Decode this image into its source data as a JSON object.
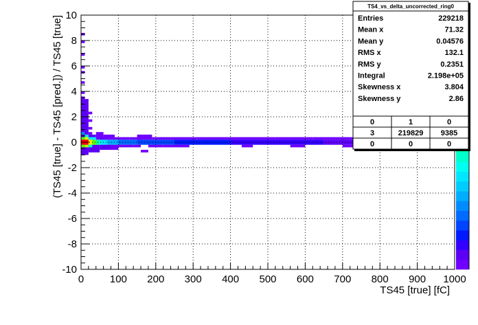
{
  "chart_data": {
    "type": "heatmap",
    "title": "",
    "xlabel": "TS45 [true] [fC]",
    "ylabel": "(TS45 [true] - TS45 [pred.]) / TS45 [true]",
    "xlim": [
      0,
      1000
    ],
    "ylim": [
      -10,
      10
    ],
    "x_ticks": [
      "0",
      "100",
      "200",
      "300",
      "400",
      "500",
      "600",
      "700",
      "800",
      "900",
      "1000"
    ],
    "y_ticks": [
      "-10",
      "-8",
      "-6",
      "-4",
      "-2",
      "0",
      "2",
      "4",
      "6",
      "8",
      "10"
    ],
    "grid": true,
    "z_scale": "log",
    "palette": [
      "#6f00ff",
      "#5c00f5",
      "#3300ff",
      "#0019ff",
      "#0044ff",
      "#006bff",
      "#008cff",
      "#00adff",
      "#00ccff",
      "#00e6ff",
      "#00fff0",
      "#00ffcc",
      "#00ff99",
      "#00ff66",
      "#00ff33",
      "#1aff00",
      "#55ff00",
      "#88ff00",
      "#b8ff00",
      "#e5ff00",
      "#fff000",
      "#ffc800",
      "#ff9900",
      "#ff6600",
      "#ff3300",
      "#ff0000"
    ],
    "cells": [
      {
        "x0": 0,
        "x1": 10,
        "y0": 8.4,
        "y1": 8.6,
        "level": 0
      },
      {
        "x0": 0,
        "x1": 10,
        "y0": 7.8,
        "y1": 8.0,
        "level": 0
      },
      {
        "x0": 0,
        "x1": 10,
        "y0": 6.8,
        "y1": 7.0,
        "level": 0
      },
      {
        "x0": 0,
        "x1": 10,
        "y0": 5.8,
        "y1": 6.0,
        "level": 0
      },
      {
        "x0": 0,
        "x1": 10,
        "y0": 5.4,
        "y1": 5.6,
        "level": 0
      },
      {
        "x0": 0,
        "x1": 10,
        "y0": 4.6,
        "y1": 4.8,
        "level": 0
      },
      {
        "x0": 0,
        "x1": 10,
        "y0": 3.8,
        "y1": 4.0,
        "level": 0
      },
      {
        "x0": 0,
        "x1": 10,
        "y0": 3.4,
        "y1": 3.6,
        "level": 0
      },
      {
        "x0": 0,
        "x1": 20,
        "y0": 0.2,
        "y1": 3.4,
        "level": 1
      },
      {
        "x0": 0,
        "x1": 20,
        "y0": -1.0,
        "y1": -0.2,
        "level": 1
      },
      {
        "x0": 20,
        "x1": 30,
        "y0": 2.2,
        "y1": 2.4,
        "level": 0
      },
      {
        "x0": 20,
        "x1": 30,
        "y0": 1.6,
        "y1": 1.8,
        "level": 0
      },
      {
        "x0": 20,
        "x1": 30,
        "y0": 1.0,
        "y1": 1.2,
        "level": 0
      },
      {
        "x0": 20,
        "x1": 30,
        "y0": 0.6,
        "y1": 0.8,
        "level": 0
      },
      {
        "x0": 20,
        "x1": 40,
        "y0": 0.2,
        "y1": 0.6,
        "level": 1
      },
      {
        "x0": 20,
        "x1": 50,
        "y0": -0.8,
        "y1": -0.2,
        "level": 1
      },
      {
        "x0": 40,
        "x1": 60,
        "y0": 0.2,
        "y1": 0.8,
        "level": 0
      },
      {
        "x0": 0,
        "x1": 10,
        "y0": 0.6,
        "y1": 0.8,
        "level": 6
      },
      {
        "x0": 10,
        "x1": 20,
        "y0": 0.4,
        "y1": 0.6,
        "level": 11
      },
      {
        "x0": 0,
        "x1": 10,
        "y0": 0.2,
        "y1": 0.4,
        "level": 16
      },
      {
        "x0": 10,
        "x1": 20,
        "y0": 0.2,
        "y1": 0.4,
        "level": 19
      },
      {
        "x0": 0,
        "x1": 20,
        "y0": -0.2,
        "y1": 0.2,
        "level": 25
      },
      {
        "x0": 20,
        "x1": 30,
        "y0": -0.2,
        "y1": 0.2,
        "level": 20
      },
      {
        "x0": 0,
        "x1": 10,
        "y0": -0.4,
        "y1": -0.2,
        "level": 16
      },
      {
        "x0": 10,
        "x1": 20,
        "y0": -0.4,
        "y1": -0.2,
        "level": 18
      },
      {
        "x0": 20,
        "x1": 30,
        "y0": -0.4,
        "y1": -0.2,
        "level": 11
      },
      {
        "x0": 30,
        "x1": 40,
        "y0": -0.2,
        "y1": 0.2,
        "level": 16
      },
      {
        "x0": 20,
        "x1": 40,
        "y0": 0.2,
        "y1": 0.4,
        "level": 9
      },
      {
        "x0": 40,
        "x1": 50,
        "y0": -0.2,
        "y1": 0.2,
        "level": 12
      },
      {
        "x0": 50,
        "x1": 70,
        "y0": -0.2,
        "y1": 0.2,
        "level": 9
      },
      {
        "x0": 70,
        "x1": 100,
        "y0": -0.2,
        "y1": 0.2,
        "level": 7
      },
      {
        "x0": 100,
        "x1": 150,
        "y0": -0.2,
        "y1": 0.2,
        "level": 5
      },
      {
        "x0": 150,
        "x1": 250,
        "y0": -0.2,
        "y1": 0.2,
        "level": 4
      },
      {
        "x0": 250,
        "x1": 400,
        "y0": -0.2,
        "y1": 0.2,
        "level": 3
      },
      {
        "x0": 400,
        "x1": 650,
        "y0": -0.2,
        "y1": 0.2,
        "level": 2
      },
      {
        "x0": 650,
        "x1": 1000,
        "y0": -0.2,
        "y1": 0.2,
        "level": 1
      },
      {
        "x0": 50,
        "x1": 80,
        "y0": -0.6,
        "y1": -0.2,
        "level": 1
      },
      {
        "x0": 50,
        "x1": 70,
        "y0": 0.2,
        "y1": 0.4,
        "level": 1
      },
      {
        "x0": 60,
        "x1": 90,
        "y0": 0.2,
        "y1": 0.6,
        "level": 0
      },
      {
        "x0": 80,
        "x1": 100,
        "y0": -0.6,
        "y1": -0.2,
        "level": 0
      },
      {
        "x0": 90,
        "x1": 110,
        "y0": 0.2,
        "y1": 0.4,
        "level": 0
      },
      {
        "x0": 100,
        "x1": 140,
        "y0": -0.4,
        "y1": -0.2,
        "level": 0
      },
      {
        "x0": 110,
        "x1": 130,
        "y0": 0.2,
        "y1": 0.4,
        "level": 0
      },
      {
        "x0": 130,
        "x1": 160,
        "y0": 0.2,
        "y1": 0.4,
        "level": 0
      },
      {
        "x0": 150,
        "x1": 190,
        "y0": 0.2,
        "y1": 0.6,
        "level": 0
      },
      {
        "x0": 140,
        "x1": 160,
        "y0": -0.4,
        "y1": -0.2,
        "level": 0
      },
      {
        "x0": 160,
        "x1": 180,
        "y0": -0.8,
        "y1": -0.6,
        "level": 0
      },
      {
        "x0": 190,
        "x1": 240,
        "y0": 0.2,
        "y1": 0.4,
        "level": 0
      },
      {
        "x0": 240,
        "x1": 310,
        "y0": 0.2,
        "y1": 0.4,
        "level": 0
      },
      {
        "x0": 180,
        "x1": 220,
        "y0": -0.4,
        "y1": -0.2,
        "level": 0
      },
      {
        "x0": 220,
        "x1": 290,
        "y0": -0.4,
        "y1": -0.2,
        "level": 0
      },
      {
        "x0": 310,
        "x1": 420,
        "y0": 0.2,
        "y1": 0.4,
        "level": 0
      },
      {
        "x0": 420,
        "x1": 520,
        "y0": 0.2,
        "y1": 0.4,
        "level": 0
      },
      {
        "x0": 520,
        "x1": 620,
        "y0": 0.2,
        "y1": 0.4,
        "level": 0
      },
      {
        "x0": 620,
        "x1": 720,
        "y0": 0.2,
        "y1": 0.4,
        "level": 0
      },
      {
        "x0": 720,
        "x1": 820,
        "y0": 0.2,
        "y1": 0.4,
        "level": 0
      },
      {
        "x0": 820,
        "x1": 900,
        "y0": 0.2,
        "y1": 0.4,
        "level": 0
      },
      {
        "x0": 900,
        "x1": 1000,
        "y0": 0.2,
        "y1": 0.4,
        "level": 0
      },
      {
        "x0": 430,
        "x1": 460,
        "y0": -0.4,
        "y1": -0.2,
        "level": 0
      },
      {
        "x0": 560,
        "x1": 600,
        "y0": -0.4,
        "y1": -0.2,
        "level": 0
      },
      {
        "x0": 700,
        "x1": 760,
        "y0": -0.4,
        "y1": -0.2,
        "level": 0
      },
      {
        "x0": 840,
        "x1": 900,
        "y0": -0.4,
        "y1": -0.2,
        "level": 0
      }
    ],
    "stats_box": {
      "title": "TS4_vs_delta_uncorrected_ring0",
      "rows": [
        {
          "label": "Entries",
          "value": "229218"
        },
        {
          "label": "Mean x",
          "value": "71.32"
        },
        {
          "label": "Mean y",
          "value": "0.04576"
        },
        {
          "label": "RMS x",
          "value": "132.1"
        },
        {
          "label": "RMS y",
          "value": "0.2351"
        },
        {
          "label": "Integral",
          "value": "2.198e+05"
        },
        {
          "label": "Skewness x",
          "value": "3.804"
        },
        {
          "label": "Skewness y",
          "value": "2.86"
        }
      ],
      "overflow_grid": [
        [
          "0",
          "1",
          "0"
        ],
        [
          "3",
          "219829",
          "9385"
        ],
        [
          "0",
          "0",
          "0"
        ]
      ]
    }
  }
}
